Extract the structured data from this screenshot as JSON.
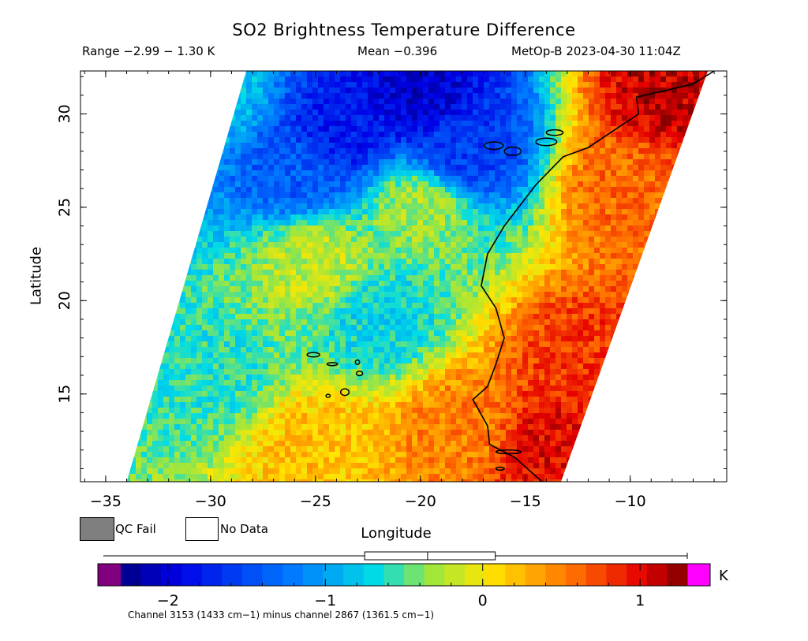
{
  "header": {
    "title": "SO2 Brightness Temperature Difference",
    "range_text": "Range −2.99 − 1.30 K",
    "mean_text": "Mean −0.396",
    "satellite_text": "MetOp-B 2023-04-30 11:04Z"
  },
  "legend": {
    "qc_fail_label": "QC Fail",
    "no_data_label": "No Data",
    "qc_fail_color": "#7f7f7f",
    "no_data_color": "#ffffff"
  },
  "colorbar": {
    "unit": "K",
    "min": -2.3,
    "max": 1.3,
    "ticks": [
      {
        "value": -2,
        "label": "−2"
      },
      {
        "value": -1,
        "label": "−1"
      },
      {
        "value": 0,
        "label": "0"
      },
      {
        "value": 1,
        "label": "1"
      }
    ],
    "under_color": "#800080",
    "over_color": "#ff00ff",
    "boxplot": {
      "whisker_low": -2.3,
      "q1": -0.75,
      "median": -0.35,
      "q3": 0.08,
      "whisker_high": 1.3
    }
  },
  "caption": "Channel 3153 (1433 cm−1) minus channel 2867 (1361.5 cm−1)",
  "chart_data": {
    "type": "heatmap",
    "title": "SO2 Brightness Temperature Difference",
    "xlabel": "Longitude",
    "ylabel": "Latitude",
    "xlim": [
      -36.2,
      -5.4
    ],
    "ylim": [
      10.3,
      32.3
    ],
    "xticks": [
      {
        "value": -35,
        "label": "−35"
      },
      {
        "value": -30,
        "label": "−30"
      },
      {
        "value": -25,
        "label": "−25"
      },
      {
        "value": -20,
        "label": "−20"
      },
      {
        "value": -15,
        "label": "−15"
      },
      {
        "value": -10,
        "label": "−10"
      }
    ],
    "yticks": [
      {
        "value": 15,
        "label": "15"
      },
      {
        "value": 20,
        "label": "20"
      },
      {
        "value": 25,
        "label": "25"
      },
      {
        "value": 30,
        "label": "30"
      }
    ],
    "swath": {
      "west_edge": [
        [
          -34.0,
          10.3
        ],
        [
          -28.3,
          32.3
        ]
      ],
      "east_edge": [
        [
          -13.3,
          10.3
        ],
        [
          -6.3,
          32.3
        ]
      ]
    },
    "field_anchors": [
      {
        "lon": -20,
        "lat": 31,
        "value": -2.0
      },
      {
        "lon": -24,
        "lat": 29,
        "value": -1.8
      },
      {
        "lon": -18,
        "lat": 28,
        "value": -1.6
      },
      {
        "lon": -26,
        "lat": 27,
        "value": -1.4
      },
      {
        "lon": -30,
        "lat": 31,
        "value": -0.8
      },
      {
        "lon": -20,
        "lat": 25,
        "value": -0.3
      },
      {
        "lon": -25,
        "lat": 22,
        "value": -0.2
      },
      {
        "lon": -22,
        "lat": 19,
        "value": -0.7
      },
      {
        "lon": -30,
        "lat": 16,
        "value": -0.6
      },
      {
        "lon": -25,
        "lat": 12,
        "value": 0.2
      },
      {
        "lon": -18,
        "lat": 13,
        "value": 0.5
      },
      {
        "lon": -14,
        "lat": 12,
        "value": 1.0
      },
      {
        "lon": -12,
        "lat": 17,
        "value": 0.8
      },
      {
        "lon": -10,
        "lat": 26,
        "value": 0.6
      },
      {
        "lon": -8,
        "lat": 31,
        "value": 1.1
      }
    ],
    "coastline_note": "West African coast and Canary / Cape Verde islands drawn as outlines",
    "grid": false,
    "legend": "bottom colorbar"
  }
}
